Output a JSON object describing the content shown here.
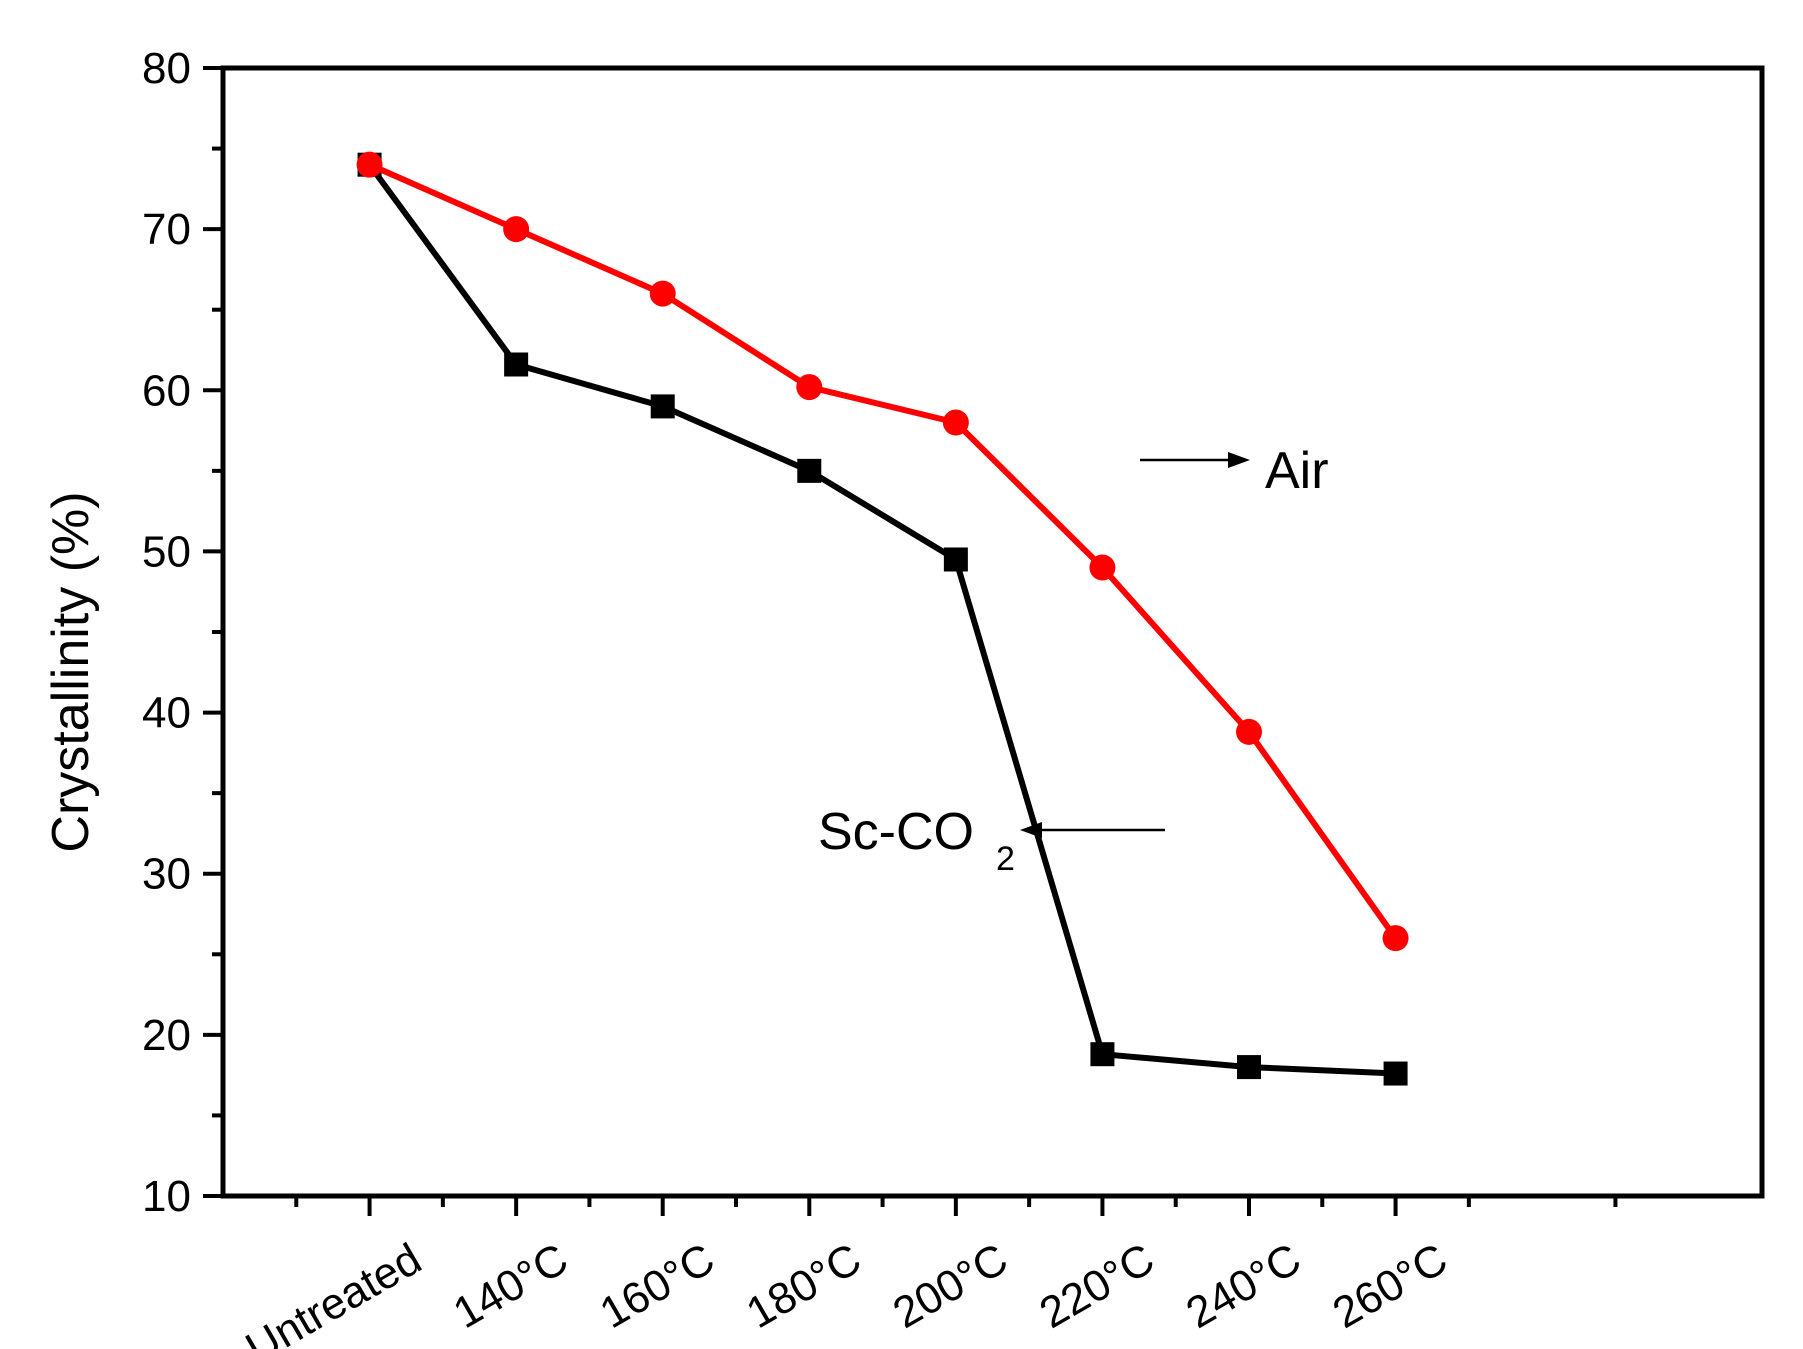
{
  "chart_data": {
    "type": "line",
    "categories": [
      "Untreated",
      "140°C",
      "160°C",
      "180°C",
      "200°C",
      "220°C",
      "240°C",
      "260°C"
    ],
    "ylabel": "Crystallinity (%)",
    "xlabel": "",
    "title": "",
    "ylim": [
      10,
      80
    ],
    "yticks": [
      "10",
      "20",
      "30",
      "40",
      "50",
      "60",
      "70",
      "80"
    ],
    "grid": false,
    "series": [
      {
        "name": "Sc-CO2",
        "marker": "square",
        "color": "#000000",
        "values": [
          74,
          61.6,
          59,
          55,
          49.5,
          18.8,
          18,
          17.6
        ]
      },
      {
        "name": "Air",
        "marker": "circle",
        "color": "#ff0000",
        "values": [
          74,
          70,
          66,
          60.2,
          58,
          49,
          38.8,
          26
        ]
      }
    ],
    "annotations": {
      "air_label": "Air",
      "sc_label_main": "Sc-CO",
      "sc_label_sub": "2"
    }
  }
}
